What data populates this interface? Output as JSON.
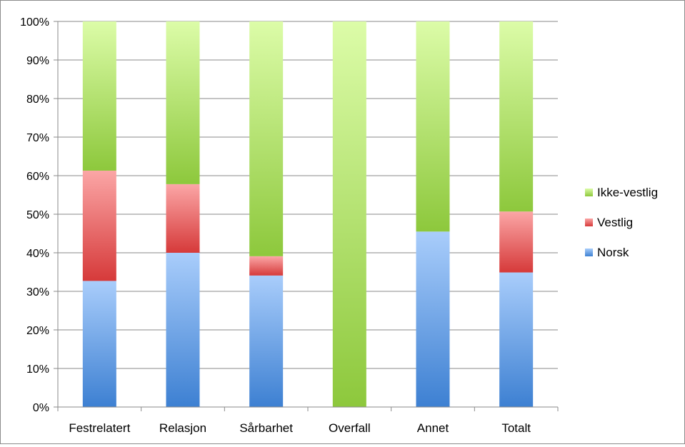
{
  "chart_data": {
    "type": "bar",
    "stacked": true,
    "categories": [
      "Festrelatert",
      "Relasjon",
      "Sårbarhet",
      "Overfall",
      "Annet",
      "Totalt"
    ],
    "series": [
      {
        "name": "Norsk",
        "values": [
          32.7,
          40.0,
          34.1,
          0,
          45.5,
          34.9
        ],
        "color_top": "#a9cdfb",
        "color_bottom": "#3d80d2"
      },
      {
        "name": "Vestlig",
        "values": [
          28.6,
          17.8,
          5.0,
          0,
          0,
          15.8
        ],
        "color_top": "#fba6a6",
        "color_bottom": "#d63a3a"
      },
      {
        "name": "Ikke-vestlig",
        "values": [
          38.7,
          42.2,
          60.9,
          100,
          54.5,
          49.3
        ],
        "color_top": "#dcfca8",
        "color_bottom": "#8dc83c"
      }
    ],
    "y_ticks": [
      "0%",
      "10%",
      "20%",
      "30%",
      "40%",
      "50%",
      "60%",
      "70%",
      "80%",
      "90%",
      "100%"
    ],
    "ylim": [
      0,
      100
    ],
    "grid": true,
    "legend_position": "right",
    "legend_order": [
      "Ikke-vestlig",
      "Vestlig",
      "Norsk"
    ]
  }
}
